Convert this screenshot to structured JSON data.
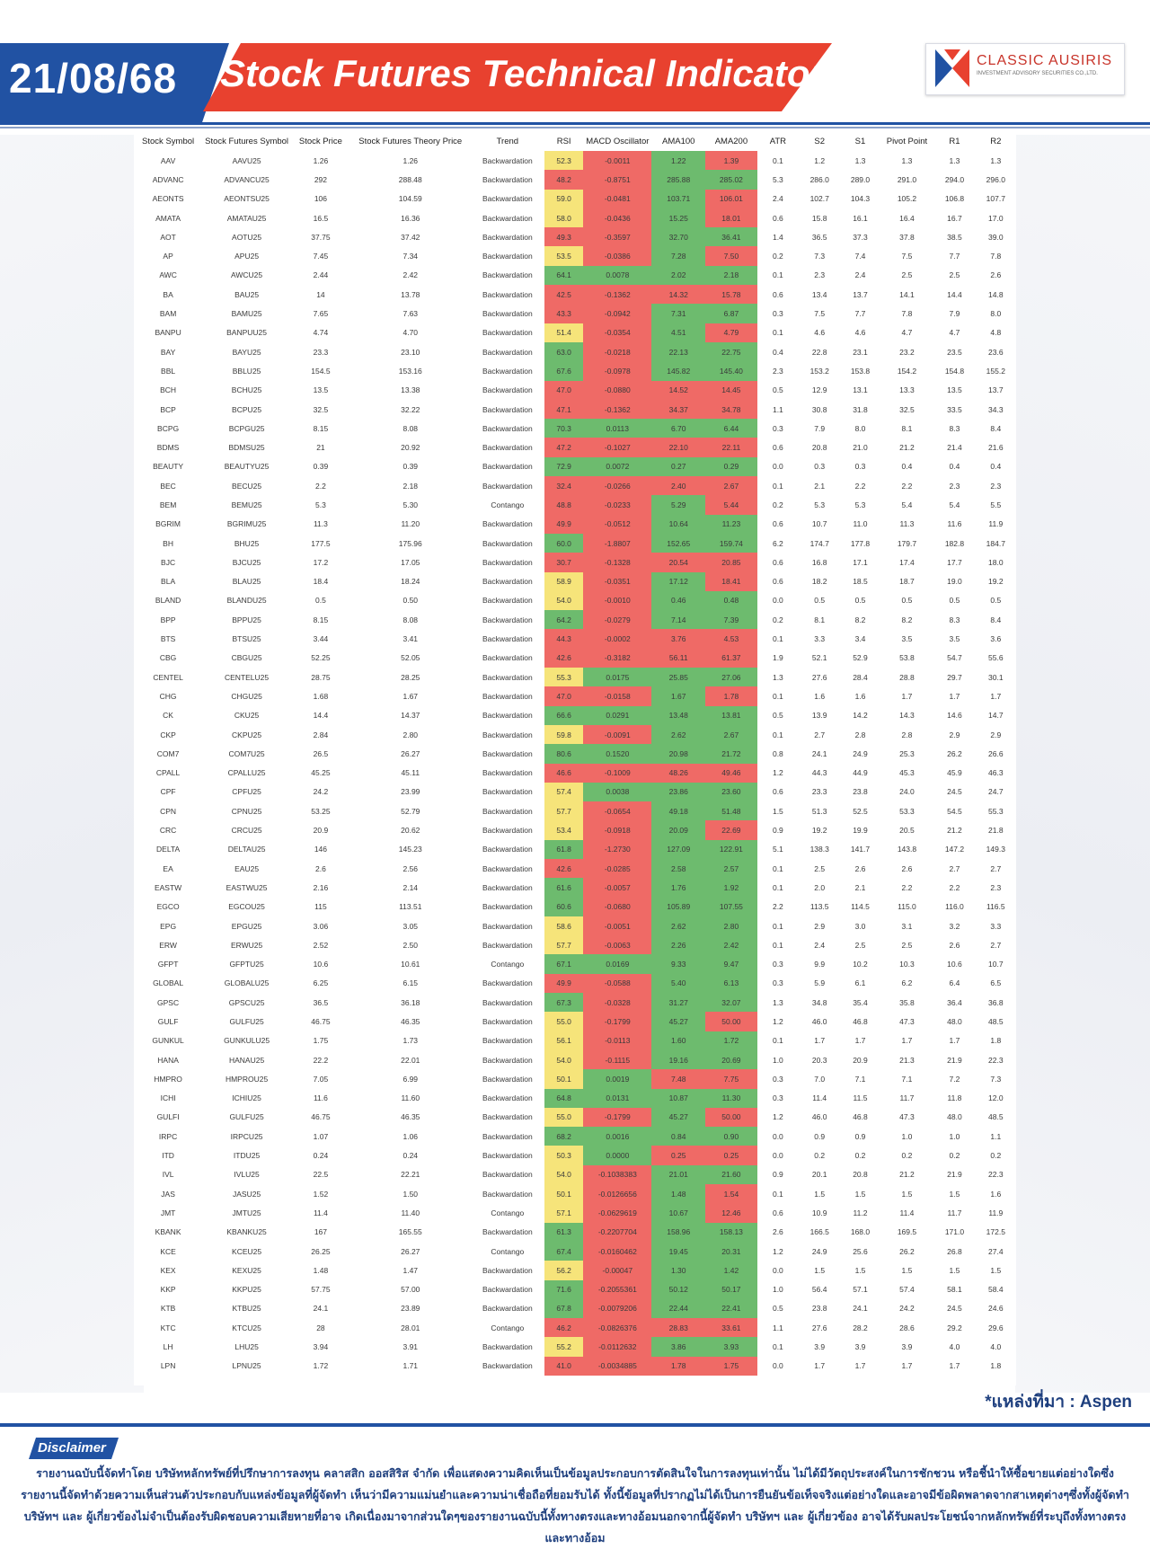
{
  "header": {
    "date": "21/08/68",
    "title": "Stock Futures Technical Indicator",
    "logo_name": "CLASSIC AUSIRIS",
    "logo_subtitle": "INVESTMENT ADVISORY SECURITIES CO.,LTD."
  },
  "colors": {
    "red": "#ef6a66",
    "green": "#6dbb6e",
    "yellow": "#f6e47a",
    "orange": "#f7b36a",
    "brand_blue": "#2152a3",
    "brand_red": "#e8412f"
  },
  "table": {
    "columns": [
      "Stock Symbol",
      "Stock Futures Symbol",
      "Stock Price",
      "Stock Futures Theory Price",
      "Trend",
      "RSI",
      "MACD Oscillator",
      "AMA100",
      "AMA200",
      "ATR",
      "S2",
      "S1",
      "Pivot Point",
      "R1",
      "R2"
    ],
    "rows": [
      [
        "AAV",
        "AAVU25",
        "1.26",
        "1.26",
        "Backwardation",
        "52.3",
        "-0.0011",
        "1.22",
        "1.39",
        "0.1",
        "1.2",
        "1.3",
        "1.3",
        "1.3",
        "1.3"
      ],
      [
        "ADVANC",
        "ADVANCU25",
        "292",
        "288.48",
        "Backwardation",
        "48.2",
        "-0.8751",
        "285.88",
        "285.02",
        "5.3",
        "286.0",
        "289.0",
        "291.0",
        "294.0",
        "296.0"
      ],
      [
        "AEONTS",
        "AEONTSU25",
        "106",
        "104.59",
        "Backwardation",
        "59.0",
        "-0.0481",
        "103.71",
        "106.01",
        "2.4",
        "102.7",
        "104.3",
        "105.2",
        "106.8",
        "107.7"
      ],
      [
        "AMATA",
        "AMATAU25",
        "16.5",
        "16.36",
        "Backwardation",
        "58.0",
        "-0.0436",
        "15.25",
        "18.01",
        "0.6",
        "15.8",
        "16.1",
        "16.4",
        "16.7",
        "17.0"
      ],
      [
        "AOT",
        "AOTU25",
        "37.75",
        "37.42",
        "Backwardation",
        "49.3",
        "-0.3597",
        "32.70",
        "36.41",
        "1.4",
        "36.5",
        "37.3",
        "37.8",
        "38.5",
        "39.0"
      ],
      [
        "AP",
        "APU25",
        "7.45",
        "7.34",
        "Backwardation",
        "53.5",
        "-0.0386",
        "7.28",
        "7.50",
        "0.2",
        "7.3",
        "7.4",
        "7.5",
        "7.7",
        "7.8"
      ],
      [
        "AWC",
        "AWCU25",
        "2.44",
        "2.42",
        "Backwardation",
        "64.1",
        "0.0078",
        "2.02",
        "2.18",
        "0.1",
        "2.3",
        "2.4",
        "2.5",
        "2.5",
        "2.6"
      ],
      [
        "BA",
        "BAU25",
        "14",
        "13.78",
        "Backwardation",
        "42.5",
        "-0.1362",
        "14.32",
        "15.78",
        "0.6",
        "13.4",
        "13.7",
        "14.1",
        "14.4",
        "14.8"
      ],
      [
        "BAM",
        "BAMU25",
        "7.65",
        "7.63",
        "Backwardation",
        "43.3",
        "-0.0942",
        "7.31",
        "6.87",
        "0.3",
        "7.5",
        "7.7",
        "7.8",
        "7.9",
        "8.0"
      ],
      [
        "BANPU",
        "BANPUU25",
        "4.74",
        "4.70",
        "Backwardation",
        "51.4",
        "-0.0354",
        "4.51",
        "4.79",
        "0.1",
        "4.6",
        "4.6",
        "4.7",
        "4.7",
        "4.8"
      ],
      [
        "BAY",
        "BAYU25",
        "23.3",
        "23.10",
        "Backwardation",
        "63.0",
        "-0.0218",
        "22.13",
        "22.75",
        "0.4",
        "22.8",
        "23.1",
        "23.2",
        "23.5",
        "23.6"
      ],
      [
        "BBL",
        "BBLU25",
        "154.5",
        "153.16",
        "Backwardation",
        "67.6",
        "-0.0978",
        "145.82",
        "145.40",
        "2.3",
        "153.2",
        "153.8",
        "154.2",
        "154.8",
        "155.2"
      ],
      [
        "BCH",
        "BCHU25",
        "13.5",
        "13.38",
        "Backwardation",
        "47.0",
        "-0.0880",
        "14.52",
        "14.45",
        "0.5",
        "12.9",
        "13.1",
        "13.3",
        "13.5",
        "13.7"
      ],
      [
        "BCP",
        "BCPU25",
        "32.5",
        "32.22",
        "Backwardation",
        "47.1",
        "-0.1362",
        "34.37",
        "34.78",
        "1.1",
        "30.8",
        "31.8",
        "32.5",
        "33.5",
        "34.3"
      ],
      [
        "BCPG",
        "BCPGU25",
        "8.15",
        "8.08",
        "Backwardation",
        "70.3",
        "0.0113",
        "6.70",
        "6.44",
        "0.3",
        "7.9",
        "8.0",
        "8.1",
        "8.3",
        "8.4"
      ],
      [
        "BDMS",
        "BDMSU25",
        "21",
        "20.92",
        "Backwardation",
        "47.2",
        "-0.1027",
        "22.10",
        "22.11",
        "0.6",
        "20.8",
        "21.0",
        "21.2",
        "21.4",
        "21.6"
      ],
      [
        "BEAUTY",
        "BEAUTYU25",
        "0.39",
        "0.39",
        "Backwardation",
        "72.9",
        "0.0072",
        "0.27",
        "0.29",
        "0.0",
        "0.3",
        "0.3",
        "0.4",
        "0.4",
        "0.4"
      ],
      [
        "BEC",
        "BECU25",
        "2.2",
        "2.18",
        "Backwardation",
        "32.4",
        "-0.0266",
        "2.40",
        "2.67",
        "0.1",
        "2.1",
        "2.2",
        "2.2",
        "2.3",
        "2.3"
      ],
      [
        "BEM",
        "BEMU25",
        "5.3",
        "5.30",
        "Contango",
        "48.8",
        "-0.0233",
        "5.29",
        "5.44",
        "0.2",
        "5.3",
        "5.3",
        "5.4",
        "5.4",
        "5.5"
      ],
      [
        "BGRIM",
        "BGRIMU25",
        "11.3",
        "11.20",
        "Backwardation",
        "49.9",
        "-0.0512",
        "10.64",
        "11.23",
        "0.6",
        "10.7",
        "11.0",
        "11.3",
        "11.6",
        "11.9"
      ],
      [
        "BH",
        "BHU25",
        "177.5",
        "175.96",
        "Backwardation",
        "60.0",
        "-1.8807",
        "152.65",
        "159.74",
        "6.2",
        "174.7",
        "177.8",
        "179.7",
        "182.8",
        "184.7"
      ],
      [
        "BJC",
        "BJCU25",
        "17.2",
        "17.05",
        "Backwardation",
        "30.7",
        "-0.1328",
        "20.54",
        "20.85",
        "0.6",
        "16.8",
        "17.1",
        "17.4",
        "17.7",
        "18.0"
      ],
      [
        "BLA",
        "BLAU25",
        "18.4",
        "18.24",
        "Backwardation",
        "58.9",
        "-0.0351",
        "17.12",
        "18.41",
        "0.6",
        "18.2",
        "18.5",
        "18.7",
        "19.0",
        "19.2"
      ],
      [
        "BLAND",
        "BLANDU25",
        "0.5",
        "0.50",
        "Backwardation",
        "54.0",
        "-0.0010",
        "0.46",
        "0.48",
        "0.0",
        "0.5",
        "0.5",
        "0.5",
        "0.5",
        "0.5"
      ],
      [
        "BPP",
        "BPPU25",
        "8.15",
        "8.08",
        "Backwardation",
        "64.2",
        "-0.0279",
        "7.14",
        "7.39",
        "0.2",
        "8.1",
        "8.2",
        "8.2",
        "8.3",
        "8.4"
      ],
      [
        "BTS",
        "BTSU25",
        "3.44",
        "3.41",
        "Backwardation",
        "44.3",
        "-0.0002",
        "3.76",
        "4.53",
        "0.1",
        "3.3",
        "3.4",
        "3.5",
        "3.5",
        "3.6"
      ],
      [
        "CBG",
        "CBGU25",
        "52.25",
        "52.05",
        "Backwardation",
        "42.6",
        "-0.3182",
        "56.11",
        "61.37",
        "1.9",
        "52.1",
        "52.9",
        "53.8",
        "54.7",
        "55.6"
      ],
      [
        "CENTEL",
        "CENTELU25",
        "28.75",
        "28.25",
        "Backwardation",
        "55.3",
        "0.0175",
        "25.85",
        "27.06",
        "1.3",
        "27.6",
        "28.4",
        "28.8",
        "29.7",
        "30.1"
      ],
      [
        "CHG",
        "CHGU25",
        "1.68",
        "1.67",
        "Backwardation",
        "47.0",
        "-0.0158",
        "1.67",
        "1.78",
        "0.1",
        "1.6",
        "1.6",
        "1.7",
        "1.7",
        "1.7"
      ],
      [
        "CK",
        "CKU25",
        "14.4",
        "14.37",
        "Backwardation",
        "66.6",
        "0.0291",
        "13.48",
        "13.81",
        "0.5",
        "13.9",
        "14.2",
        "14.3",
        "14.6",
        "14.7"
      ],
      [
        "CKP",
        "CKPU25",
        "2.84",
        "2.80",
        "Backwardation",
        "59.8",
        "-0.0091",
        "2.62",
        "2.67",
        "0.1",
        "2.7",
        "2.8",
        "2.8",
        "2.9",
        "2.9"
      ],
      [
        "COM7",
        "COM7U25",
        "26.5",
        "26.27",
        "Backwardation",
        "80.6",
        "0.1520",
        "20.98",
        "21.72",
        "0.8",
        "24.1",
        "24.9",
        "25.3",
        "26.2",
        "26.6"
      ],
      [
        "CPALL",
        "CPALLU25",
        "45.25",
        "45.11",
        "Backwardation",
        "46.6",
        "-0.1009",
        "48.26",
        "49.46",
        "1.2",
        "44.3",
        "44.9",
        "45.3",
        "45.9",
        "46.3"
      ],
      [
        "CPF",
        "CPFU25",
        "24.2",
        "23.99",
        "Backwardation",
        "57.4",
        "0.0038",
        "23.86",
        "23.60",
        "0.6",
        "23.3",
        "23.8",
        "24.0",
        "24.5",
        "24.7"
      ],
      [
        "CPN",
        "CPNU25",
        "53.25",
        "52.79",
        "Backwardation",
        "57.7",
        "-0.0654",
        "49.18",
        "51.48",
        "1.5",
        "51.3",
        "52.5",
        "53.3",
        "54.5",
        "55.3"
      ],
      [
        "CRC",
        "CRCU25",
        "20.9",
        "20.62",
        "Backwardation",
        "53.4",
        "-0.0918",
        "20.09",
        "22.69",
        "0.9",
        "19.2",
        "19.9",
        "20.5",
        "21.2",
        "21.8"
      ],
      [
        "DELTA",
        "DELTAU25",
        "146",
        "145.23",
        "Backwardation",
        "61.8",
        "-1.2730",
        "127.09",
        "122.91",
        "5.1",
        "138.3",
        "141.7",
        "143.8",
        "147.2",
        "149.3"
      ],
      [
        "EA",
        "EAU25",
        "2.6",
        "2.56",
        "Backwardation",
        "42.6",
        "-0.0285",
        "2.58",
        "2.57",
        "0.1",
        "2.5",
        "2.6",
        "2.6",
        "2.7",
        "2.7"
      ],
      [
        "EASTW",
        "EASTWU25",
        "2.16",
        "2.14",
        "Backwardation",
        "61.6",
        "-0.0057",
        "1.76",
        "1.92",
        "0.1",
        "2.0",
        "2.1",
        "2.2",
        "2.2",
        "2.3"
      ],
      [
        "EGCO",
        "EGCOU25",
        "115",
        "113.51",
        "Backwardation",
        "60.6",
        "-0.0680",
        "105.89",
        "107.55",
        "2.2",
        "113.5",
        "114.5",
        "115.0",
        "116.0",
        "116.5"
      ],
      [
        "EPG",
        "EPGU25",
        "3.06",
        "3.05",
        "Backwardation",
        "58.6",
        "-0.0051",
        "2.62",
        "2.80",
        "0.1",
        "2.9",
        "3.0",
        "3.1",
        "3.2",
        "3.3"
      ],
      [
        "ERW",
        "ERWU25",
        "2.52",
        "2.50",
        "Backwardation",
        "57.7",
        "-0.0063",
        "2.26",
        "2.42",
        "0.1",
        "2.4",
        "2.5",
        "2.5",
        "2.6",
        "2.7"
      ],
      [
        "GFPT",
        "GFPTU25",
        "10.6",
        "10.61",
        "Contango",
        "67.1",
        "0.0169",
        "9.33",
        "9.47",
        "0.3",
        "9.9",
        "10.2",
        "10.3",
        "10.6",
        "10.7"
      ],
      [
        "GLOBAL",
        "GLOBALU25",
        "6.25",
        "6.15",
        "Backwardation",
        "49.9",
        "-0.0588",
        "5.40",
        "6.13",
        "0.3",
        "5.9",
        "6.1",
        "6.2",
        "6.4",
        "6.5"
      ],
      [
        "GPSC",
        "GPSCU25",
        "36.5",
        "36.18",
        "Backwardation",
        "67.3",
        "-0.0328",
        "31.27",
        "32.07",
        "1.3",
        "34.8",
        "35.4",
        "35.8",
        "36.4",
        "36.8"
      ],
      [
        "GULF",
        "GULFU25",
        "46.75",
        "46.35",
        "Backwardation",
        "55.0",
        "-0.1799",
        "45.27",
        "50.00",
        "1.2",
        "46.0",
        "46.8",
        "47.3",
        "48.0",
        "48.5"
      ],
      [
        "GUNKUL",
        "GUNKULU25",
        "1.75",
        "1.73",
        "Backwardation",
        "56.1",
        "-0.0113",
        "1.60",
        "1.72",
        "0.1",
        "1.7",
        "1.7",
        "1.7",
        "1.7",
        "1.8"
      ],
      [
        "HANA",
        "HANAU25",
        "22.2",
        "22.01",
        "Backwardation",
        "54.0",
        "-0.1115",
        "19.16",
        "20.69",
        "1.0",
        "20.3",
        "20.9",
        "21.3",
        "21.9",
        "22.3"
      ],
      [
        "HMPRO",
        "HMPROU25",
        "7.05",
        "6.99",
        "Backwardation",
        "50.1",
        "0.0019",
        "7.48",
        "7.75",
        "0.3",
        "7.0",
        "7.1",
        "7.1",
        "7.2",
        "7.3"
      ],
      [
        "ICHI",
        "ICHIU25",
        "11.6",
        "11.60",
        "Backwardation",
        "64.8",
        "0.0131",
        "10.87",
        "11.30",
        "0.3",
        "11.4",
        "11.5",
        "11.7",
        "11.8",
        "12.0"
      ],
      [
        "GULFI",
        "GULFU25",
        "46.75",
        "46.35",
        "Backwardation",
        "55.0",
        "-0.1799",
        "45.27",
        "50.00",
        "1.2",
        "46.0",
        "46.8",
        "47.3",
        "48.0",
        "48.5"
      ],
      [
        "IRPC",
        "IRPCU25",
        "1.07",
        "1.06",
        "Backwardation",
        "68.2",
        "0.0016",
        "0.84",
        "0.90",
        "0.0",
        "0.9",
        "0.9",
        "1.0",
        "1.0",
        "1.1"
      ],
      [
        "ITD",
        "ITDU25",
        "0.24",
        "0.24",
        "Backwardation",
        "50.3",
        "0.0000",
        "0.25",
        "0.25",
        "0.0",
        "0.2",
        "0.2",
        "0.2",
        "0.2",
        "0.2"
      ],
      [
        "IVL",
        "IVLU25",
        "22.5",
        "22.21",
        "Backwardation",
        "54.0",
        "-0.1038383",
        "21.01",
        "21.60",
        "0.9",
        "20.1",
        "20.8",
        "21.2",
        "21.9",
        "22.3"
      ],
      [
        "JAS",
        "JASU25",
        "1.52",
        "1.50",
        "Backwardation",
        "50.1",
        "-0.0126656",
        "1.48",
        "1.54",
        "0.1",
        "1.5",
        "1.5",
        "1.5",
        "1.5",
        "1.6"
      ],
      [
        "JMT",
        "JMTU25",
        "11.4",
        "11.40",
        "Contango",
        "57.1",
        "-0.0629619",
        "10.67",
        "12.46",
        "0.6",
        "10.9",
        "11.2",
        "11.4",
        "11.7",
        "11.9"
      ],
      [
        "KBANK",
        "KBANKU25",
        "167",
        "165.55",
        "Backwardation",
        "61.3",
        "-0.2207704",
        "158.96",
        "158.13",
        "2.6",
        "166.5",
        "168.0",
        "169.5",
        "171.0",
        "172.5"
      ],
      [
        "KCE",
        "KCEU25",
        "26.25",
        "26.27",
        "Contango",
        "67.4",
        "-0.0160462",
        "19.45",
        "20.31",
        "1.2",
        "24.9",
        "25.6",
        "26.2",
        "26.8",
        "27.4"
      ],
      [
        "KEX",
        "KEXU25",
        "1.48",
        "1.47",
        "Backwardation",
        "56.2",
        "-0.00047",
        "1.30",
        "1.42",
        "0.0",
        "1.5",
        "1.5",
        "1.5",
        "1.5",
        "1.5"
      ],
      [
        "KKP",
        "KKPU25",
        "57.75",
        "57.00",
        "Backwardation",
        "71.6",
        "-0.2055361",
        "50.12",
        "50.17",
        "1.0",
        "56.4",
        "57.1",
        "57.4",
        "58.1",
        "58.4"
      ],
      [
        "KTB",
        "KTBU25",
        "24.1",
        "23.89",
        "Backwardation",
        "67.8",
        "-0.0079206",
        "22.44",
        "22.41",
        "0.5",
        "23.8",
        "24.1",
        "24.2",
        "24.5",
        "24.6"
      ],
      [
        "KTC",
        "KTCU25",
        "28",
        "28.01",
        "Contango",
        "46.2",
        "-0.0826376",
        "28.83",
        "33.61",
        "1.1",
        "27.6",
        "28.2",
        "28.6",
        "29.2",
        "29.6"
      ],
      [
        "LH",
        "LHU25",
        "3.94",
        "3.91",
        "Backwardation",
        "55.2",
        "-0.0112632",
        "3.86",
        "3.93",
        "0.1",
        "3.9",
        "3.9",
        "3.9",
        "4.0",
        "4.0"
      ],
      [
        "LPN",
        "LPNU25",
        "1.72",
        "1.71",
        "Backwardation",
        "41.0",
        "-0.0034885",
        "1.78",
        "1.75",
        "0.0",
        "1.7",
        "1.7",
        "1.7",
        "1.7",
        "1.8"
      ]
    ]
  },
  "source": "*แหล่งที่มา : Aspen",
  "disclaimer": {
    "label": "Disclaimer",
    "text": "รายงานฉบับนี้จัดทำโดย บริษัทหลักทรัพย์ที่ปรึกษาการลงทุน คลาสสิก ออสสิริส จำกัด เพื่อแสดงความคิดเห็นเป็นข้อมูลประกอบการตัดสินใจในการลงทุนเท่านั้น ไม่ได้มีวัตถุประสงค์ในการชักชวน หรือชี้นำให้ซื้อขายแต่อย่างใดซึ่งรายงานนี้จัดทำด้วยความเห็นส่วนตัวประกอบกับแหล่งข้อมูลที่ผู้จัดทำ เห็นว่ามีความแม่นยำและความน่าเชื่อถือที่ยอมรับได้ ทั้งนี้ข้อมูลที่ปรากฏไม่ได้เป็นการยืนยันข้อเท็จจริงแต่อย่างใดและอาจมีข้อผิดพลาดจากสาเหตุต่างๆซึ่งทั้งผู้จัดทำ บริษัทฯ และ ผู้เกี่ยวข้องไม่จำเป็นต้องรับผิดชอบความเสียหายที่อาจ เกิดเนื่องมาจากส่วนใดๆของรายงานฉบับนี้ทั้งทางตรงและทางอ้อมนอกจากนี้ผู้จัดทำ บริษัทฯ และ ผู้เกี่ยวข้อง อาจได้รับผลประโยชน์จากหลักทรัพย์ที่ระบุถึงทั้งทางตรงและทางอ้อม"
  }
}
